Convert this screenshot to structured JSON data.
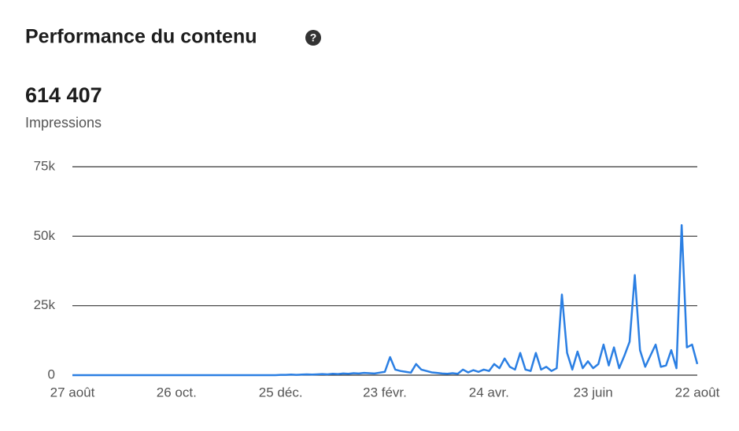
{
  "chart_data": {
    "type": "line",
    "title": "Performance du contenu",
    "help_icon": "?",
    "total": "614 407",
    "metric": "Impressions",
    "categories": [
      "27 août",
      null,
      null,
      null,
      null,
      null,
      null,
      null,
      null,
      null,
      null,
      null,
      null,
      null,
      null,
      null,
      null,
      null,
      null,
      null,
      "26 oct.",
      null,
      null,
      null,
      null,
      null,
      null,
      null,
      null,
      null,
      null,
      null,
      null,
      null,
      null,
      null,
      null,
      null,
      null,
      null,
      "25 déc.",
      null,
      null,
      null,
      null,
      null,
      null,
      null,
      null,
      null,
      null,
      null,
      null,
      null,
      null,
      null,
      null,
      null,
      null,
      null,
      "23 févr.",
      null,
      null,
      null,
      null,
      null,
      null,
      null,
      null,
      null,
      null,
      null,
      null,
      null,
      null,
      null,
      null,
      null,
      null,
      null,
      "24 avr.",
      null,
      null,
      null,
      null,
      null,
      null,
      null,
      null,
      null,
      null,
      null,
      null,
      null,
      null,
      null,
      null,
      null,
      null,
      null,
      "23 juin",
      null,
      null,
      null,
      null,
      null,
      null,
      null,
      null,
      null,
      null,
      null,
      null,
      null,
      null,
      null,
      null,
      null,
      null,
      null,
      "22 août"
    ],
    "series": [
      {
        "name": "Impressions",
        "color": "#2b7fe3",
        "values": [
          0,
          0,
          0,
          0,
          0,
          0,
          0,
          0,
          0,
          0,
          0,
          0,
          0,
          0,
          0,
          0,
          0,
          0,
          0,
          0,
          0,
          0,
          0,
          0,
          0,
          0,
          0,
          0,
          0,
          0,
          0,
          0,
          0,
          0,
          0,
          0,
          0,
          0,
          0,
          0,
          100,
          100,
          200,
          100,
          200,
          300,
          200,
          300,
          400,
          300,
          500,
          400,
          600,
          500,
          700,
          600,
          800,
          700,
          600,
          900,
          1200,
          6500,
          2000,
          1500,
          1200,
          900,
          4000,
          2000,
          1500,
          1000,
          800,
          600,
          500,
          700,
          500,
          2000,
          1000,
          1800,
          1200,
          2000,
          1500,
          4000,
          2500,
          6000,
          3000,
          2000,
          8000,
          2000,
          1500,
          8000,
          2000,
          3000,
          1500,
          2500,
          29000,
          8000,
          2000,
          8500,
          2500,
          5000,
          2500,
          4000,
          11000,
          3500,
          10000,
          2500,
          7000,
          12000,
          36000,
          9000,
          3000,
          7000,
          11000,
          3000,
          3500,
          9000,
          2500,
          54000,
          10000,
          11000,
          4000
        ]
      }
    ],
    "ylim": [
      0,
      75000
    ],
    "yticks": [
      0,
      {
        "value": 25000,
        "label": "25k"
      },
      {
        "value": 50000,
        "label": "50k"
      },
      {
        "value": 75000,
        "label": "75k"
      }
    ],
    "grid": true
  }
}
